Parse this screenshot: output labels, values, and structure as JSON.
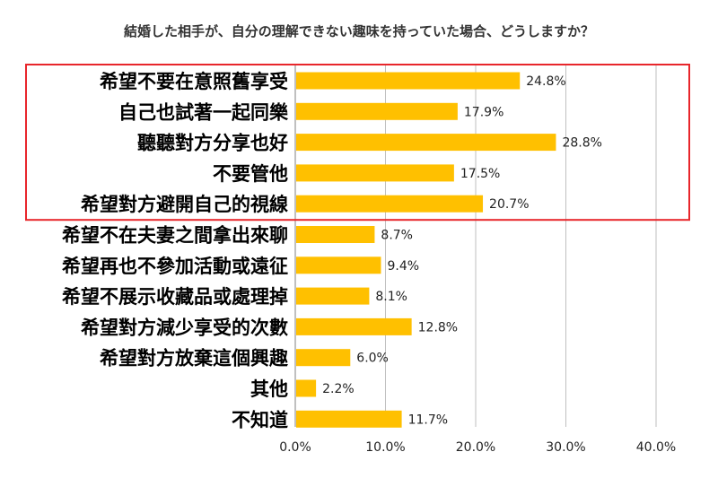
{
  "chart_data": {
    "type": "bar",
    "orientation": "horizontal",
    "title": "結婚した相手が、自分の理解できない趣味を持っていた場合、どうしますか？",
    "xlabel": "",
    "ylabel": "",
    "categories": [
      "希望不要在意照舊享受",
      "自己也試著一起同樂",
      "聽聽對方分享也好",
      "不要管他",
      "希望對方避開自己的視線",
      "希望不在夫妻之間拿出來聊",
      "希望再也不參加活動或遠征",
      "希望不展示收藏品或處理掉",
      "希望對方減少享受的次數",
      "希望對方放棄這個興趣",
      "其他",
      "不知道"
    ],
    "values": [
      24.8,
      17.9,
      28.8,
      17.5,
      20.7,
      8.7,
      9.4,
      8.1,
      12.8,
      6.0,
      2.2,
      11.7
    ],
    "value_labels": [
      "24.8%",
      "17.9%",
      "28.8%",
      "17.5%",
      "20.7%",
      "8.7%",
      "9.4%",
      "8.1%",
      "12.8%",
      "6.0%",
      "2.2%",
      "11.7%"
    ],
    "xlim": [
      0,
      40
    ],
    "ticks": [
      0,
      10,
      20,
      30,
      40
    ],
    "tick_labels": [
      "0.0%",
      "10.0%",
      "20.0%",
      "30.0%",
      "40.0%"
    ],
    "grid": "vertical",
    "highlighted_categories": [
      0,
      1,
      2,
      3,
      4
    ],
    "colors": {
      "bar": "#FFC000",
      "highlight_box": "#E8262B",
      "grid": "#BFBFBF"
    }
  }
}
